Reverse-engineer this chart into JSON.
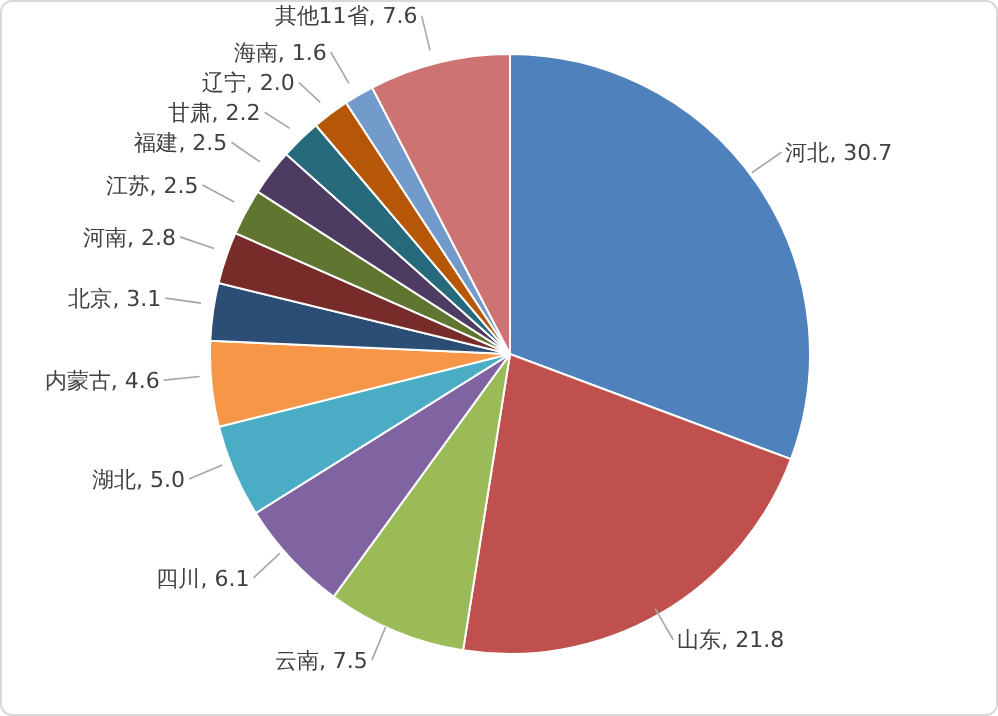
{
  "chart_data": {
    "type": "pie",
    "categories": [
      "河北",
      "山东",
      "云南",
      "四川",
      "湖北",
      "内蒙古",
      "北京",
      "河南",
      "江苏",
      "福建",
      "甘肃",
      "辽宁",
      "海南",
      "其他11省"
    ],
    "values": [
      30.7,
      21.8,
      7.5,
      6.1,
      5.0,
      4.6,
      3.1,
      2.8,
      2.5,
      2.5,
      2.2,
      2.0,
      1.6,
      7.6
    ],
    "value_labels": [
      "30.7",
      "21.8",
      "7.5",
      "6.1",
      "5.0",
      "4.6",
      "3.1",
      "2.8",
      "2.5",
      "2.5",
      "2.2",
      "2.0",
      "1.6",
      "7.6"
    ],
    "colors": [
      "#4f81bd",
      "#c0504d",
      "#9bbb59",
      "#8064a2",
      "#4bacc6",
      "#f79646",
      "#2c4d75",
      "#772c2a",
      "#5f7530",
      "#4d3b62",
      "#276a7c",
      "#b65708",
      "#729aca",
      "#cd7371"
    ],
    "legend": false
  }
}
